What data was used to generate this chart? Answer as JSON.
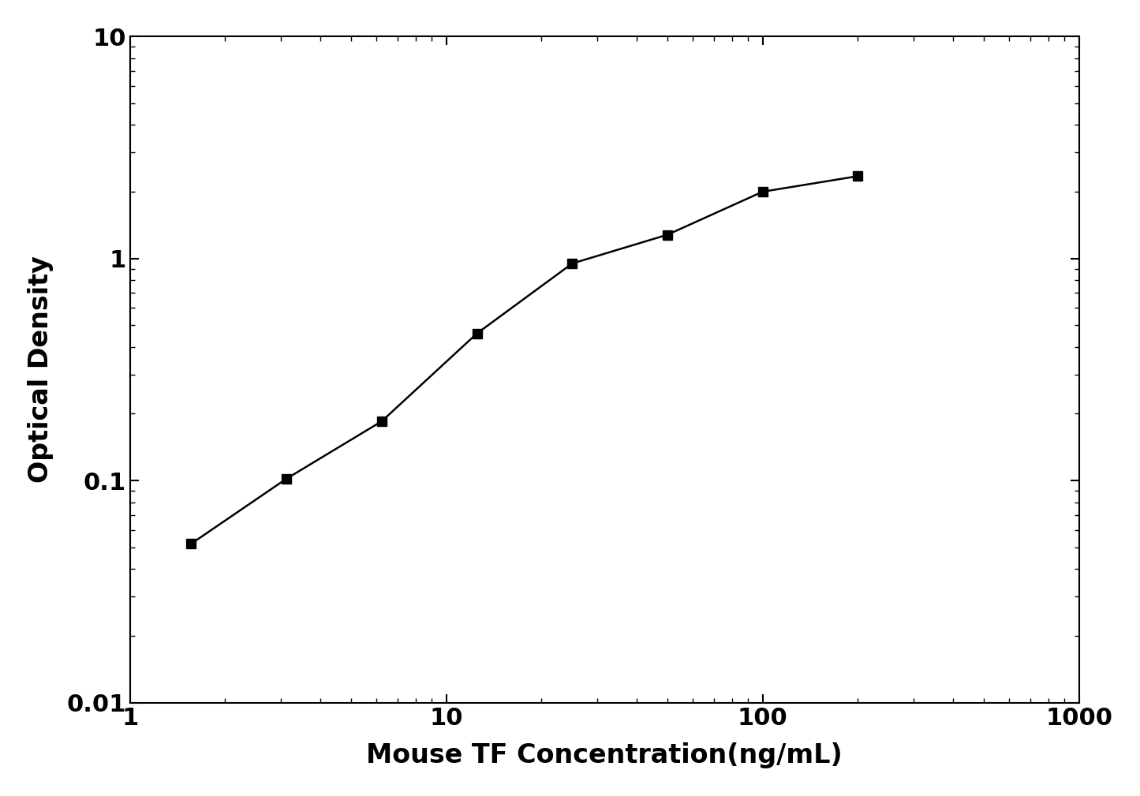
{
  "x_data": [
    1.563,
    3.125,
    6.25,
    12.5,
    25.0,
    50.0,
    100.0,
    200.0
  ],
  "y_data": [
    0.052,
    0.102,
    0.185,
    0.46,
    0.95,
    1.28,
    2.0,
    2.35
  ],
  "xlabel": "Mouse TF Concentration(ng/mL)",
  "ylabel": "Optical Density",
  "xlim": [
    1.0,
    1000.0
  ],
  "ylim": [
    0.01,
    10.0
  ],
  "curve_xlim": [
    1.0,
    250.0
  ],
  "line_color": "#000000",
  "marker_color": "#000000",
  "marker": "s",
  "marker_size": 9,
  "line_width": 1.8,
  "xlabel_fontsize": 24,
  "ylabel_fontsize": 24,
  "tick_fontsize": 22,
  "background_color": "#ffffff",
  "axis_color": "#000000",
  "ytick_labels": [
    "0.01",
    "0.1",
    "1",
    "10"
  ],
  "ytick_values": [
    0.01,
    0.1,
    1.0,
    10.0
  ],
  "xtick_labels": [
    "1",
    "10",
    "100",
    "1000"
  ],
  "xtick_values": [
    1.0,
    10.0,
    100.0,
    1000.0
  ]
}
